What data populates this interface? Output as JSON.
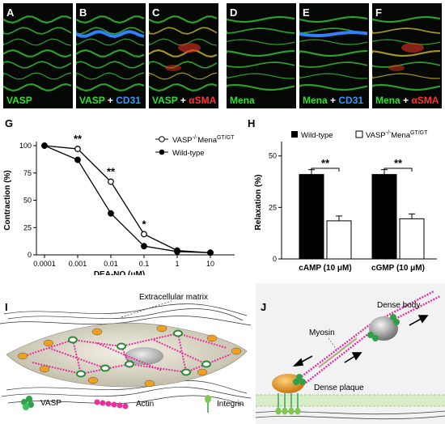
{
  "micro": {
    "A": {
      "letter": "A",
      "cap": [
        "VASP"
      ]
    },
    "B": {
      "letter": "B",
      "cap": [
        "VASP",
        "+",
        "CD31"
      ]
    },
    "C": {
      "letter": "C",
      "cap": [
        "VASP",
        "+",
        "αSMA"
      ]
    },
    "D": {
      "letter": "D",
      "cap": [
        "Mena"
      ]
    },
    "E": {
      "letter": "E",
      "cap": [
        "Mena",
        "+",
        "CD31"
      ]
    },
    "F": {
      "letter": "F",
      "cap": [
        "Mena",
        "+",
        "αSMA"
      ]
    }
  },
  "panelG": {
    "letter": "G",
    "chart_data": {
      "type": "line",
      "x": [
        "0.0001",
        "0.001",
        "0.01",
        "0.1",
        "1",
        "10"
      ],
      "xlabel": "DEA-NO (μM)",
      "ylabel": "Contraction (%)",
      "yticks": [
        "0",
        "25",
        "50",
        "75",
        "100"
      ],
      "ylim": [
        0,
        100
      ],
      "xscale": "log",
      "series": [
        {
          "name": "VASP-/-MenaGT/GT",
          "marker": "open",
          "values": [
            100,
            97,
            67,
            19,
            4,
            2
          ]
        },
        {
          "name": "Wild-type",
          "marker": "filled",
          "values": [
            100,
            87,
            38,
            8,
            3,
            2
          ]
        }
      ],
      "annotations": [
        "**",
        "**",
        "*"
      ],
      "legend": {
        "s1_main": "VASP",
        "s1_sup1": "-/-",
        "s1_main2": "Mena",
        "s1_sup2": "GT/GT",
        "s2": "Wild-type"
      }
    }
  },
  "panelH": {
    "letter": "H",
    "chart_data": {
      "type": "bar",
      "categories": [
        "cAMP (10 μM)",
        "cGMP (10 μM)"
      ],
      "ylabel": "Relaxation (%)",
      "yticks": [
        "0",
        "25",
        "50"
      ],
      "ylim": [
        0,
        55
      ],
      "series": [
        {
          "name": "Wild-type",
          "color": "#000000",
          "values": [
            41,
            41
          ]
        },
        {
          "name": "VASP-/-MenaGT/GT",
          "color": "#ffffff",
          "values": [
            18.5,
            19.5
          ]
        }
      ],
      "annotations": [
        "**",
        "**"
      ],
      "legend": {
        "s1": "Wild-type",
        "s2_main": "VASP",
        "s2_sup1": "-/-",
        "s2_main2": "Mena",
        "s2_sup2": "GT/GT"
      }
    }
  },
  "panelI": {
    "letter": "I",
    "ecm_label": "Extracellular matrix",
    "legend": {
      "vasp": "VASP",
      "actin": "Actin",
      "integrin": "Integrin"
    }
  },
  "panelJ": {
    "letter": "J",
    "dense_body": "Dense body",
    "myosin": "Myosin",
    "dense_plaque": "Dense plaque"
  }
}
